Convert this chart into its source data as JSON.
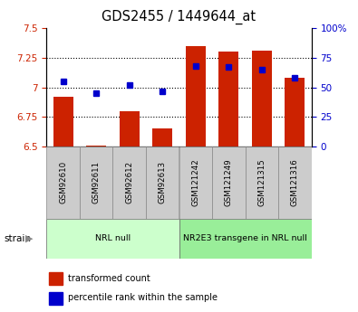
{
  "title": "GDS2455 / 1449644_at",
  "samples": [
    "GSM92610",
    "GSM92611",
    "GSM92612",
    "GSM92613",
    "GSM121242",
    "GSM121249",
    "GSM121315",
    "GSM121316"
  ],
  "transformed_count": [
    6.92,
    6.505,
    6.8,
    6.655,
    7.35,
    7.3,
    7.31,
    7.08
  ],
  "percentile_rank": [
    55,
    45,
    52,
    47,
    68,
    67,
    65,
    58
  ],
  "bar_color": "#cc2200",
  "marker_color": "#0000cc",
  "ylim_left": [
    6.5,
    7.5
  ],
  "ylim_right": [
    0,
    100
  ],
  "yticks_left": [
    6.5,
    6.75,
    7.0,
    7.25,
    7.5
  ],
  "yticks_right": [
    0,
    25,
    50,
    75,
    100
  ],
  "ytick_labels_left": [
    "6.5",
    "6.75",
    "7",
    "7.25",
    "7.5"
  ],
  "ytick_labels_right": [
    "0",
    "25",
    "50",
    "75",
    "100%"
  ],
  "groups": [
    {
      "label": "NRL null",
      "start": 0,
      "end": 3,
      "color": "#ccffcc"
    },
    {
      "label": "NR2E3 transgene in NRL null",
      "start": 4,
      "end": 7,
      "color": "#99ee99"
    }
  ],
  "strain_label": "strain",
  "legend_items": [
    {
      "label": "transformed count",
      "color": "#cc2200"
    },
    {
      "label": "percentile rank within the sample",
      "color": "#0000cc"
    }
  ],
  "bar_width": 0.6,
  "label_color_left": "#cc2200",
  "label_color_right": "#0000cc",
  "grid_yticks": [
    6.75,
    7.0,
    7.25
  ]
}
